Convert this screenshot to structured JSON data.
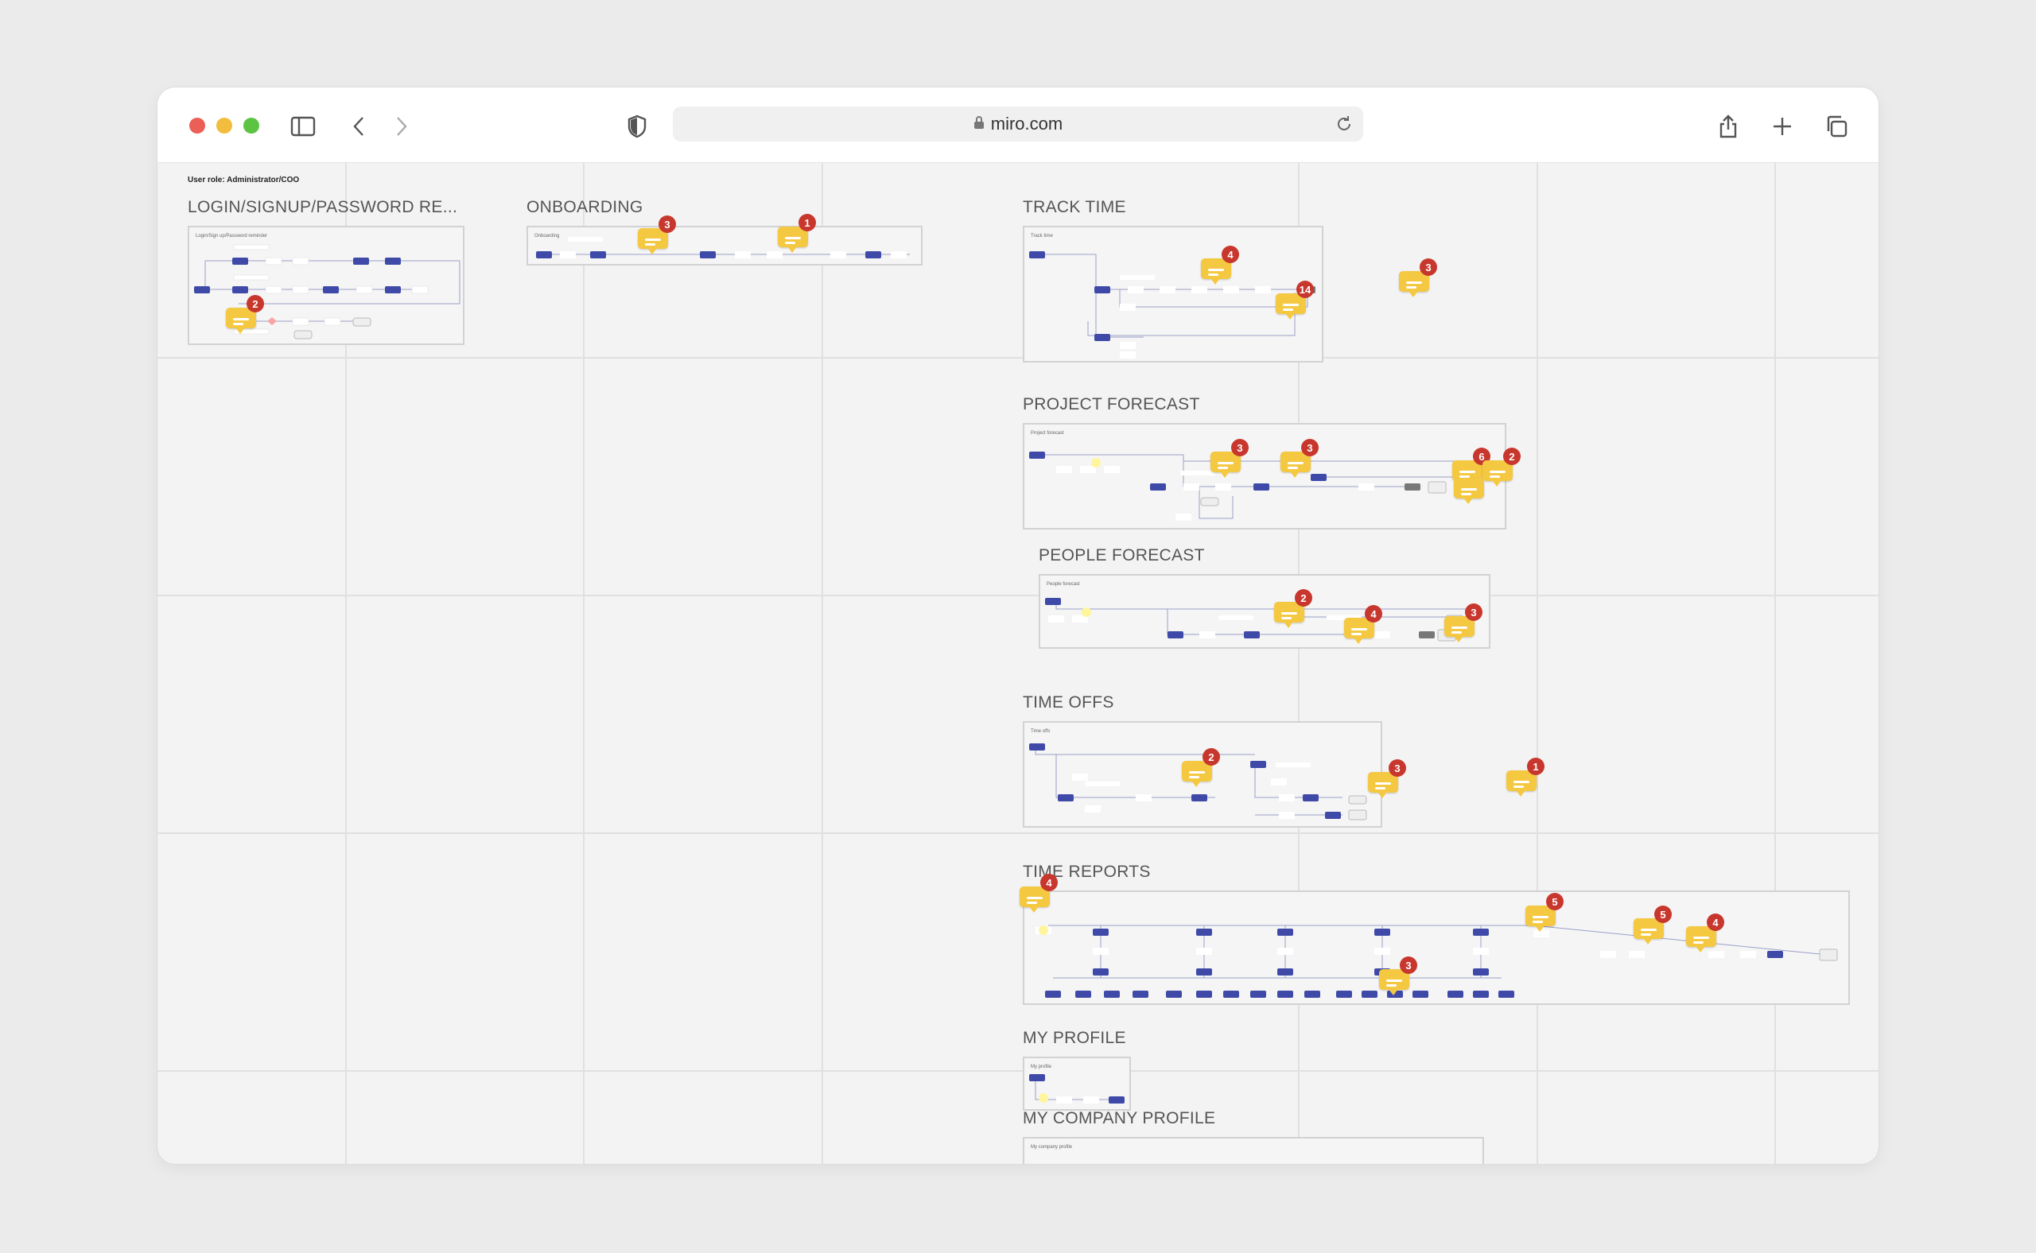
{
  "browser": {
    "url": "miro.com",
    "controls": [
      "close",
      "minimize",
      "zoom"
    ],
    "icons": [
      "sidebar-icon",
      "back-icon",
      "forward-icon",
      "shield-icon",
      "lock-icon",
      "reload-icon",
      "share-icon",
      "new-tab-icon",
      "tabs-icon"
    ]
  },
  "board": {
    "role_label": "User role: Administrator/COO",
    "sections": [
      {
        "id": "login",
        "title": "LOGIN/SIGNUP/PASSWORD RE...",
        "frame_label": "Login/Sign up/Password reminder",
        "comments": [
          2
        ]
      },
      {
        "id": "onboarding",
        "title": "ONBOARDING",
        "frame_label": "Onboarding",
        "comments": [
          3,
          1
        ]
      },
      {
        "id": "track-time",
        "title": "TRACK TIME",
        "frame_label": "Track time",
        "comments": [
          4,
          3,
          14
        ]
      },
      {
        "id": "project-forecast",
        "title": "PROJECT FORECAST",
        "frame_label": "Project forecast",
        "comments": [
          3,
          3,
          6,
          2
        ]
      },
      {
        "id": "people-forecast",
        "title": "PEOPLE FORECAST",
        "frame_label": "People forecast",
        "comments": [
          2,
          4,
          3
        ]
      },
      {
        "id": "time-offs",
        "title": "TIME OFFS",
        "frame_label": "Time offs",
        "comments": [
          2,
          3,
          1
        ]
      },
      {
        "id": "time-reports",
        "title": "TIME REPORTS",
        "frame_label": "",
        "comments": [
          4,
          5,
          5,
          4,
          3
        ]
      },
      {
        "id": "my-profile",
        "title": "MY PROFILE",
        "frame_label": "My profile",
        "comments": []
      },
      {
        "id": "my-company-profile",
        "title": "MY COMPANY PROFILE",
        "frame_label": "My company profile",
        "comments": []
      }
    ]
  },
  "colors": {
    "node": "#3f4aa8",
    "comment": "#f5c842",
    "badge": "#c8372d"
  }
}
